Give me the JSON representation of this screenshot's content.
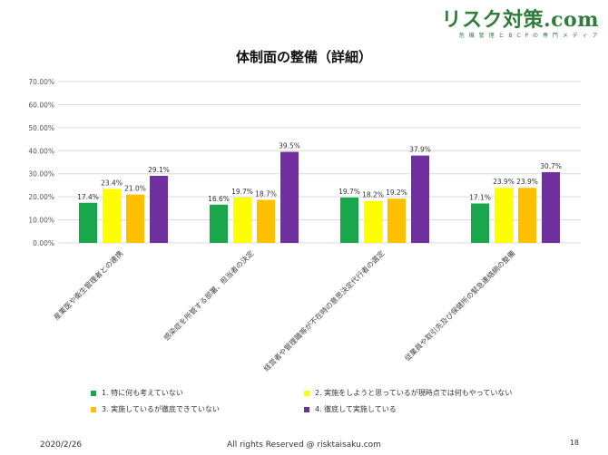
{
  "header": {
    "logo_main": "リスク対策.com",
    "logo_sub": "危 機 管 理 と B C P の 専 門 メ デ ィ ア"
  },
  "colors": {
    "series1": "#1aa64a",
    "series2": "#ffff00",
    "series3": "#ffc000",
    "series4": "#7030a0",
    "grid": "#d9d9d9"
  },
  "chart_data": {
    "type": "bar",
    "title": "体制面の整備（詳細）",
    "categories": [
      "産業医や衛生管理者との連携",
      "感染症を所管する部署、担当者の決定",
      "経営者や管理職等が不在時の意思決定代行者の選定",
      "従業員や取引先及び保健所の緊急連絡網の整備"
    ],
    "series": [
      {
        "name": "1. 特に何も考えていない",
        "values": [
          17.4,
          16.6,
          19.7,
          17.1
        ],
        "labels": [
          "17.4%",
          "16.6%",
          "19.7%",
          "17.1%"
        ]
      },
      {
        "name": "2. 実施をしようと思っているが現時点では何もやっていない",
        "values": [
          23.4,
          19.7,
          18.2,
          23.9
        ],
        "labels": [
          "23.4%",
          "19.7%",
          "18.2%",
          "23.9%"
        ]
      },
      {
        "name": "3. 実施しているが徹底できていない",
        "values": [
          21.0,
          18.7,
          19.2,
          23.9
        ],
        "labels": [
          "21.0%",
          "18.7%",
          "19.2%",
          "23.9%"
        ]
      },
      {
        "name": "4. 徹底して実施している",
        "values": [
          29.1,
          39.5,
          37.9,
          30.7
        ],
        "labels": [
          "29.1%",
          "39.5%",
          "37.9%",
          "30.7%"
        ]
      }
    ],
    "ylim": [
      0,
      70
    ],
    "yticks": [
      "0.00%",
      "10.00%",
      "20.00%",
      "30.00%",
      "40.00%",
      "50.00%",
      "60.00%",
      "70.00%"
    ],
    "grid": true,
    "legend_position": "bottom"
  },
  "footer": {
    "date": "2020/2/26",
    "copyright": "All rights Reserved @ risktaisaku.com",
    "page": "18"
  }
}
